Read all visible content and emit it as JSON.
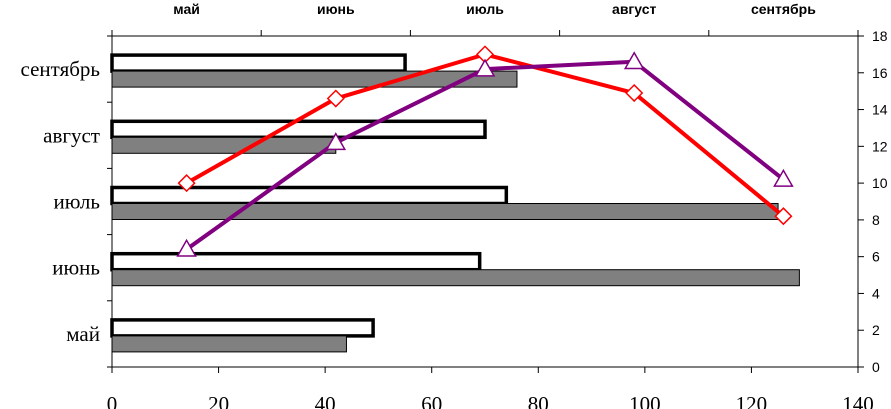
{
  "chart_data": {
    "type": "bar",
    "orientation": "horizontal",
    "categories": [
      "май",
      "июнь",
      "июль",
      "август",
      "сентябрь"
    ],
    "bar_series": [
      {
        "values": [
          49,
          69,
          74,
          70,
          55
        ],
        "fill": "#ffffff",
        "stroke": "#000000"
      },
      {
        "values": [
          44,
          129,
          125,
          42,
          76
        ],
        "fill": "#808080",
        "stroke": "#000000"
      }
    ],
    "x_axis_bottom": {
      "range": [
        0,
        140
      ],
      "ticks": [
        0,
        20,
        40,
        60,
        80,
        100,
        120,
        140
      ]
    },
    "line_overlay": {
      "type": "line",
      "x_categories": [
        "май",
        "июнь",
        "июль",
        "август",
        "сентябрь"
      ],
      "y_axis_right": {
        "range": [
          0,
          18
        ],
        "ticks": [
          0,
          2,
          4,
          6,
          8,
          10,
          12,
          14,
          16,
          18
        ]
      },
      "series": [
        {
          "values": [
            10.0,
            14.6,
            17.0,
            14.9,
            8.2
          ],
          "color": "#ff0000",
          "marker": "diamond"
        },
        {
          "values": [
            6.4,
            12.2,
            16.2,
            16.6,
            10.2
          ],
          "color": "#800080",
          "marker": "triangle"
        }
      ]
    },
    "title": "",
    "grid": false,
    "legend": "none"
  }
}
